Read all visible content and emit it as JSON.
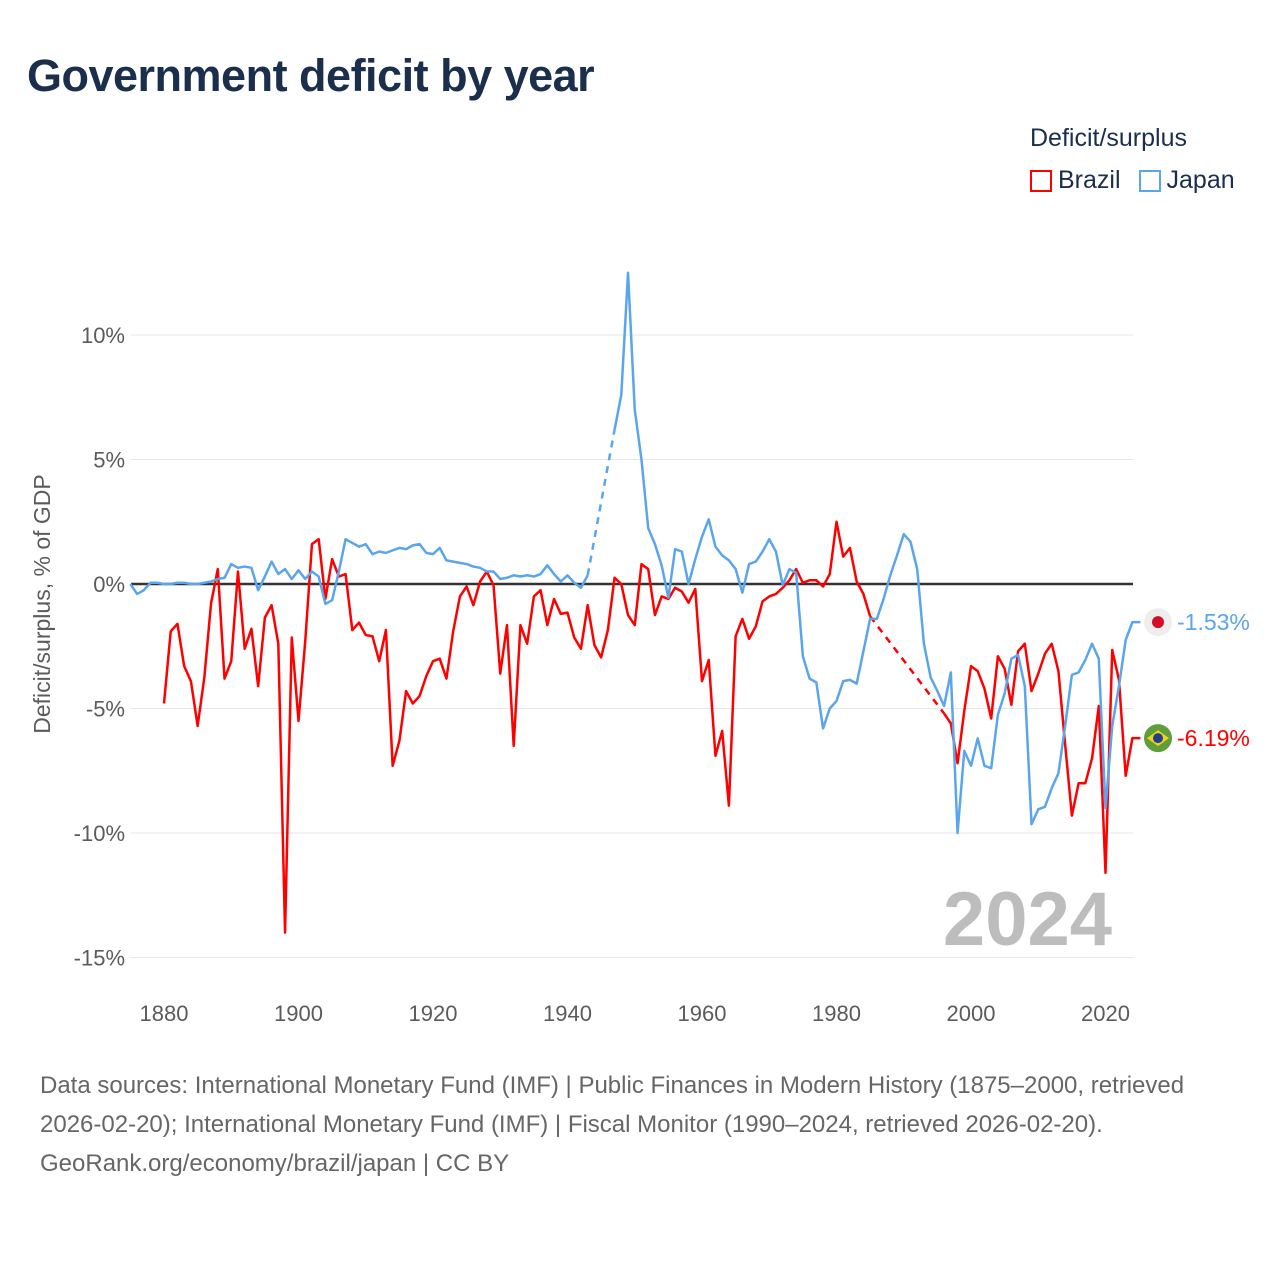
{
  "title": "Government deficit by year",
  "legend": {
    "title": "Deficit/surplus",
    "items": [
      {
        "name": "Brazil",
        "color": "#ff0000"
      },
      {
        "name": "Japan",
        "color": "#5aa5eb"
      }
    ]
  },
  "year_label": "2024",
  "footer": {
    "sources": "Data sources: International Monetary Fund (IMF) | Public Finances in Modern History (1875–2000, retrieved 2026-02-20); International Monetary Fund (IMF) | Fiscal Monitor (1990–2024, retrieved 2026-02-20).",
    "credit": "GeoRank.org/economy/brazil/japan | CC BY"
  },
  "chart_data": {
    "type": "line",
    "title": "Government deficit by year",
    "xlabel": "",
    "ylabel": "Deficit/surplus, % of GDP",
    "xlim": [
      1875,
      2024
    ],
    "ylim": [
      -15,
      12.5
    ],
    "xticks": [
      1880,
      1900,
      1920,
      1940,
      1960,
      1980,
      2000,
      2020
    ],
    "xtick_labels": [
      "1880",
      "1900",
      "1920",
      "1940",
      "1960",
      "1980",
      "2000",
      "2020"
    ],
    "yticks": [
      10,
      5,
      0,
      -5,
      -10,
      -15
    ],
    "ytick_labels": [
      "10%",
      "5%",
      "0%",
      "-5%",
      "-10%",
      "-15%"
    ],
    "grid": true,
    "legend_position": "top-right",
    "series": [
      {
        "name": "Brazil",
        "color": "#ff0000",
        "start_year": 1880,
        "end_label": "-6.19%",
        "values": [
          -4.8,
          -1.9,
          -1.6,
          -3.3,
          -3.9,
          -5.7,
          -3.75,
          -0.77,
          0.6,
          -3.8,
          -3.1,
          0.5,
          -2.6,
          -1.8,
          -4.1,
          -1.35,
          -0.85,
          -2.4,
          -14.0,
          -2.15,
          -5.5,
          -2.3,
          1.6,
          1.8,
          -0.6,
          1.0,
          0.3,
          0.4,
          -1.85,
          -1.55,
          -2.05,
          -2.1,
          -3.1,
          -1.85,
          -7.3,
          -6.3,
          -4.3,
          -4.8,
          -4.5,
          -3.7,
          -3.1,
          -3.0,
          -3.8,
          -1.9,
          -0.5,
          -0.1,
          -0.85,
          0.1,
          0.5,
          -0.05,
          -3.6,
          -1.65,
          -6.5,
          -1.65,
          -2.4,
          -0.5,
          -0.25,
          -1.65,
          -0.6,
          -1.2,
          -1.15,
          -2.15,
          -2.6,
          -0.85,
          -2.45,
          -2.95,
          -1.85,
          0.25,
          0,
          -1.25,
          -1.65,
          0.8,
          0.6,
          -1.25,
          -0.5,
          -0.6,
          -0.15,
          -0.3,
          -0.75,
          -0.2,
          -3.9,
          -3.05,
          -6.9,
          -5.9,
          -8.9,
          -2.1,
          -1.4,
          -2.2,
          -1.7,
          -0.7,
          -0.5,
          -0.4,
          -0.15,
          0.15,
          0.6,
          0.05,
          0.15,
          0.15,
          -0.1,
          0.4,
          2.5,
          1.1,
          1.45,
          0.1,
          -0.4,
          -1.3,
          null,
          null,
          null,
          null,
          null,
          null,
          null,
          null,
          null,
          null,
          -5.2,
          -5.6,
          -7.2,
          -5.1,
          -3.3,
          -3.5,
          -4.2,
          -5.4,
          -2.9,
          -3.4,
          -4.85,
          -2.7,
          -2.4,
          -4.3,
          -3.6,
          -2.8,
          -2.4,
          -3.5,
          -6.45,
          -9.3,
          -8.0,
          -8.0,
          -7.0,
          -4.9,
          -11.6,
          -2.65,
          -3.85,
          -7.7,
          -6.19
        ]
      },
      {
        "name": "Japan",
        "color": "#5aa5eb",
        "start_year": 1875,
        "end_label": "-1.53%",
        "values": [
          0,
          -0.4,
          -0.25,
          0.05,
          0.05,
          0,
          0,
          0.05,
          0.05,
          0,
          0,
          0.05,
          0.1,
          0.2,
          0.25,
          0.8,
          0.65,
          0.7,
          0.65,
          -0.25,
          0.3,
          0.9,
          0.4,
          0.6,
          0.2,
          0.55,
          0.2,
          0.5,
          0.3,
          -0.8,
          -0.65,
          0.5,
          1.8,
          1.65,
          1.5,
          1.6,
          1.2,
          1.3,
          1.25,
          1.35,
          1.45,
          1.4,
          1.55,
          1.6,
          1.25,
          1.2,
          1.45,
          0.95,
          0.9,
          0.85,
          0.8,
          0.7,
          0.65,
          0.5,
          0.5,
          0.2,
          0.25,
          0.35,
          0.3,
          0.35,
          0.3,
          0.4,
          0.75,
          0.4,
          0.1,
          0.35,
          0.05,
          -0.15,
          0.35,
          null,
          null,
          null,
          6.2,
          7.6,
          12.5,
          7.0,
          5.0,
          2.25,
          1.6,
          0.75,
          -0.55,
          1.4,
          1.3,
          0,
          1.0,
          1.9,
          2.6,
          1.5,
          1.15,
          0.95,
          0.6,
          -0.35,
          0.8,
          0.9,
          1.3,
          1.8,
          1.3,
          -0.05,
          0.6,
          0.45,
          -2.9,
          -3.8,
          -3.95,
          -5.8,
          -5.0,
          -4.7,
          -3.9,
          -3.85,
          -4.0,
          -2.7,
          -1.4,
          -1.4,
          -0.6,
          0.35,
          1.15,
          2.0,
          1.7,
          0.6,
          -2.4,
          -3.75,
          -4.3,
          -4.9,
          -3.55,
          -10.0,
          -6.7,
          -7.3,
          -6.2,
          -7.3,
          -7.4,
          -5.25,
          -4.4,
          -3.0,
          -2.85,
          -4.1,
          -9.65,
          -9.05,
          -8.95,
          -8.2,
          -7.6,
          -5.7,
          -3.65,
          -3.55,
          -3.05,
          -2.4,
          -3.0,
          -9.0,
          -5.7,
          -4.1,
          -2.25,
          -1.53
        ]
      }
    ]
  }
}
